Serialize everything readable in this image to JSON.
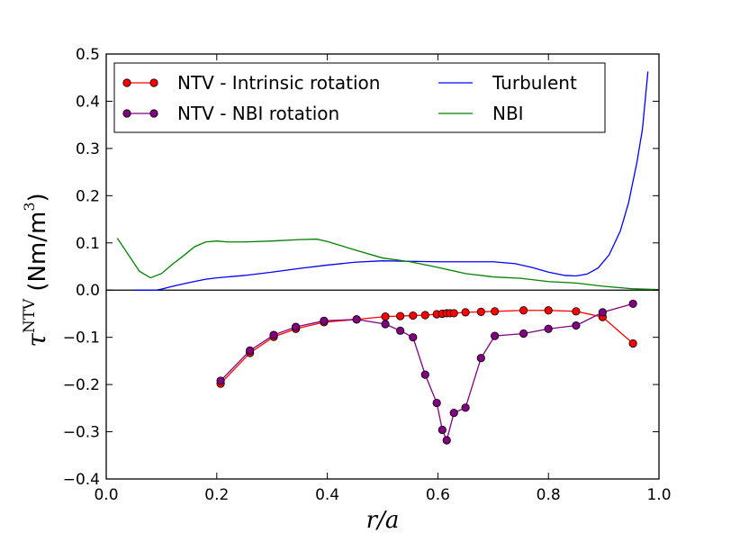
{
  "chart_data": {
    "type": "line",
    "xlabel": "r/a",
    "ylabel": {
      "symbol": "τ",
      "superscript": "NTV",
      "unit_prefix": "(Nm/m",
      "unit_power": "3",
      "unit_suffix": ")"
    },
    "xlim": [
      0.0,
      1.0
    ],
    "ylim": [
      -0.4,
      0.5
    ],
    "xticks": [
      "0.0",
      "0.2",
      "0.4",
      "0.6",
      "0.8",
      "1.0"
    ],
    "yticks": [
      "0.5",
      "0.4",
      "0.3",
      "0.2",
      "0.1",
      "0.0",
      "−0.1",
      "−0.2",
      "−0.3",
      "−0.4"
    ],
    "zero_line": true,
    "grid": false,
    "legend": {
      "placement": "top-left",
      "columns": 2,
      "entries": [
        "NTV - Intrinsic rotation",
        "NTV - NBI rotation",
        "Turbulent",
        "NBI"
      ]
    },
    "series": [
      {
        "name": "NTV - Intrinsic rotation",
        "color": "#ff0000",
        "marker": "circle",
        "x": [
          0.207,
          0.26,
          0.303,
          0.343,
          0.394,
          0.453,
          0.505,
          0.532,
          0.555,
          0.577,
          0.598,
          0.608,
          0.616,
          0.622,
          0.629,
          0.65,
          0.678,
          0.703,
          0.755,
          0.8,
          0.85,
          0.898,
          0.953
        ],
        "y": [
          -0.198,
          -0.133,
          -0.099,
          -0.082,
          -0.068,
          -0.062,
          -0.056,
          -0.055,
          -0.054,
          -0.053,
          -0.051,
          -0.05,
          -0.049,
          -0.049,
          -0.049,
          -0.047,
          -0.046,
          -0.045,
          -0.043,
          -0.043,
          -0.045,
          -0.057,
          -0.113
        ]
      },
      {
        "name": "NTV - NBI rotation",
        "color": "#800080",
        "marker": "circle",
        "x": [
          0.207,
          0.26,
          0.303,
          0.343,
          0.394,
          0.453,
          0.505,
          0.532,
          0.555,
          0.577,
          0.598,
          0.608,
          0.616,
          0.629,
          0.65,
          0.678,
          0.703,
          0.755,
          0.8,
          0.85,
          0.898,
          0.953
        ],
        "y": [
          -0.192,
          -0.128,
          -0.095,
          -0.078,
          -0.065,
          -0.062,
          -0.072,
          -0.086,
          -0.1,
          -0.179,
          -0.239,
          -0.296,
          -0.318,
          -0.26,
          -0.249,
          -0.144,
          -0.097,
          -0.092,
          -0.082,
          -0.075,
          -0.047,
          -0.029
        ]
      },
      {
        "name": "Turbulent",
        "color": "#0000ff",
        "marker": "none",
        "x": [
          0.05,
          0.07,
          0.09,
          0.1,
          0.12,
          0.15,
          0.18,
          0.2,
          0.25,
          0.3,
          0.35,
          0.4,
          0.45,
          0.5,
          0.55,
          0.6,
          0.65,
          0.7,
          0.74,
          0.77,
          0.8,
          0.83,
          0.85,
          0.87,
          0.89,
          0.91,
          0.93,
          0.945,
          0.96,
          0.97,
          0.98
        ],
        "y": [
          0.0,
          0.0,
          0.0,
          0.002,
          0.008,
          0.016,
          0.023,
          0.026,
          0.031,
          0.038,
          0.046,
          0.053,
          0.059,
          0.062,
          0.061,
          0.06,
          0.06,
          0.06,
          0.056,
          0.048,
          0.038,
          0.031,
          0.03,
          0.034,
          0.047,
          0.075,
          0.125,
          0.185,
          0.27,
          0.34,
          0.463
        ]
      },
      {
        "name": "NBI",
        "color": "#008000",
        "marker": "none",
        "x": [
          0.02,
          0.04,
          0.06,
          0.08,
          0.1,
          0.12,
          0.14,
          0.16,
          0.18,
          0.2,
          0.22,
          0.25,
          0.3,
          0.35,
          0.38,
          0.4,
          0.45,
          0.5,
          0.55,
          0.6,
          0.65,
          0.7,
          0.75,
          0.8,
          0.85,
          0.9,
          0.95,
          1.0
        ],
        "y": [
          0.11,
          0.075,
          0.04,
          0.026,
          0.035,
          0.055,
          0.073,
          0.092,
          0.102,
          0.104,
          0.102,
          0.102,
          0.104,
          0.107,
          0.108,
          0.103,
          0.085,
          0.068,
          0.06,
          0.048,
          0.035,
          0.028,
          0.025,
          0.018,
          0.015,
          0.008,
          0.003,
          0.001
        ]
      }
    ]
  }
}
